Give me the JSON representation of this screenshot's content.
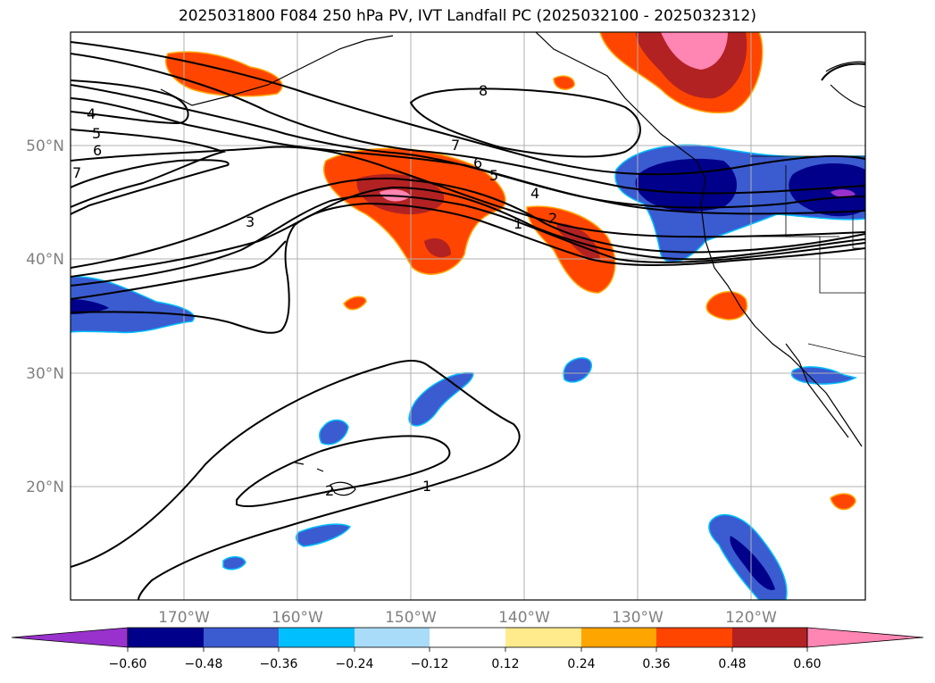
{
  "title": "2025031800 F084 250 hPa PV, IVT Landfall PC (2025032100 - 2025032312)",
  "map": {
    "lat_labels": [
      "50°N",
      "40°N",
      "30°N",
      "20°N"
    ],
    "lon_labels": [
      "170°W",
      "160°W",
      "150°W",
      "140°W",
      "130°W",
      "120°W"
    ],
    "contour_labels": [
      "8",
      "7",
      "6",
      "5",
      "4",
      "3",
      "2",
      "1",
      "4",
      "5",
      "6",
      "7",
      "2",
      "1"
    ]
  },
  "colorbar": {
    "ticks": [
      "−0.60",
      "−0.48",
      "−0.36",
      "−0.24",
      "−0.12",
      "0.12",
      "0.24",
      "0.36",
      "0.48",
      "0.60"
    ],
    "colors": [
      "#9932cc",
      "#00008b",
      "#3b5bd0",
      "#00bfff",
      "#a8dcf8",
      "#ffffff",
      "#ffeb8c",
      "#ffa500",
      "#ff4500",
      "#b22222",
      "#ff85b3"
    ]
  },
  "colors": {
    "neg_dark": "#00008b",
    "neg_mid": "#3b5bd0",
    "neg_light": "#00bfff",
    "pos_orange": "#ff4500",
    "pos_red": "#b22222",
    "pos_pink": "#ff85b3",
    "pos_purple": "#9932cc",
    "grid": "#b0b0b0"
  }
}
